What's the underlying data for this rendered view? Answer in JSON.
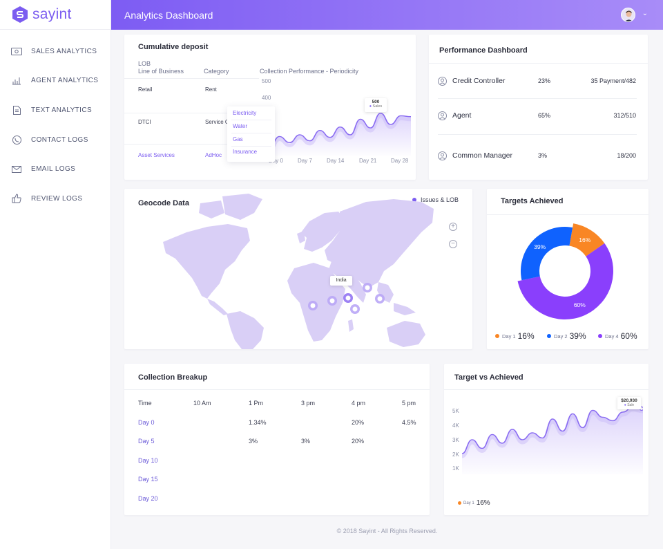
{
  "app": {
    "logo_text": "sayint",
    "header_title": "Analytics Dashboard"
  },
  "sidebar": {
    "items": [
      {
        "label": "SALES ANALYTICS",
        "icon": "money-icon"
      },
      {
        "label": "AGENT ANALYTICS",
        "icon": "bar-chart-icon"
      },
      {
        "label": "TEXT ANALYTICS",
        "icon": "document-icon"
      },
      {
        "label": "CONTACT LOGS",
        "icon": "phone-icon"
      },
      {
        "label": "EMAIL LOGS",
        "icon": "mail-icon"
      },
      {
        "label": "REVIEW LOGS",
        "icon": "thumbs-up-icon"
      }
    ]
  },
  "cumulative": {
    "title": "Cumulative deposit",
    "col_lob": "LOB",
    "col_lob_sub": "Line of Business",
    "col_category": "Category",
    "col_perf": "Collection Performance - Periodicity",
    "rows": [
      {
        "lob": "Retail",
        "category": "Rent"
      },
      {
        "lob": "DTCI",
        "category": "Service C"
      },
      {
        "lob": "Asset Services",
        "category": "AdHoc"
      }
    ],
    "dropdown": [
      "Electricity",
      "Water",
      "Gas",
      "Insurance"
    ],
    "y_ticks": [
      "500",
      "400"
    ],
    "x_ticks": [
      "Day 0",
      "Day 7",
      "Day 14",
      "Day 21",
      "Day 28"
    ],
    "tooltip_value": "500",
    "tooltip_label": "Sales",
    "chart_data": {
      "type": "area",
      "x": [
        "Day 0",
        "Day 3",
        "Day 5",
        "Day 7",
        "Day 9",
        "Day 11",
        "Day 13",
        "Day 15",
        "Day 17",
        "Day 19",
        "Day 21",
        "Day 23",
        "Day 25",
        "Day 27",
        "Day 28"
      ],
      "values": [
        230,
        290,
        255,
        300,
        265,
        325,
        285,
        345,
        300,
        390,
        340,
        425,
        360,
        410,
        405
      ],
      "ylim": [
        180,
        500
      ]
    }
  },
  "performance": {
    "title": "Performance Dashboard",
    "rows": [
      {
        "name": "Credit Controller",
        "pct": "23%",
        "value": "35 Payment/482"
      },
      {
        "name": "Agent",
        "pct": "65%",
        "value": "312/510"
      },
      {
        "name": "Common Manager",
        "pct": "3%",
        "value": "18/200"
      }
    ]
  },
  "geocode": {
    "title": "Geocode Data",
    "legend": "Issues & LOB",
    "marker_label": "India",
    "zoom_in": "+",
    "zoom_out": "−"
  },
  "targets": {
    "title": "Targets Achieved",
    "slices": [
      {
        "day": "Day 1",
        "pct": "16%",
        "value": 16,
        "color": "#f98624"
      },
      {
        "day": "Day 2",
        "pct": "39%",
        "value": 39,
        "color": "#0f62fe"
      },
      {
        "day": "Day 4",
        "pct": "60%",
        "value": 60,
        "color": "#8a3ffc"
      }
    ],
    "chart_data": {
      "type": "pie",
      "categories": [
        "Day 1",
        "Day 2",
        "Day 4"
      ],
      "values": [
        16,
        39,
        60
      ]
    }
  },
  "collection": {
    "title": "Collection Breakup",
    "headers": [
      "Time",
      "10 Am",
      "1 Pm",
      "3 pm",
      "4 pm",
      "5 pm"
    ],
    "rows": [
      [
        "Day 0",
        "",
        "1.34%",
        "",
        "20%",
        "4.5%"
      ],
      [
        "Day 5",
        "",
        "3%",
        "3%",
        "20%",
        ""
      ],
      [
        "Day 10",
        "",
        "",
        "",
        "",
        ""
      ],
      [
        "Day 15",
        "",
        "",
        "",
        "",
        ""
      ],
      [
        "Day 20",
        "",
        "",
        "",
        "",
        ""
      ]
    ]
  },
  "tva": {
    "title": "Target vs Achieved",
    "y_ticks": [
      "5K",
      "4K",
      "3K",
      "2K",
      "1K"
    ],
    "tooltip_value": "$20,930",
    "tooltip_label": "Sale",
    "legend_day": "Day 1",
    "legend_val": "16%",
    "chart_data": {
      "type": "area",
      "x": [
        0,
        1,
        2,
        3,
        4,
        5,
        6,
        7,
        8,
        9,
        10,
        11,
        12,
        13,
        14,
        15,
        16,
        17,
        18
      ],
      "values": [
        2200,
        3000,
        2500,
        3300,
        2800,
        3600,
        3000,
        3400,
        3100,
        4200,
        3500,
        4500,
        3700,
        4700,
        4300,
        4100,
        4600,
        4900,
        4800
      ],
      "ylim": [
        1000,
        5000
      ]
    }
  },
  "footer": "© 2018 Sayint - All Rights Reserved."
}
